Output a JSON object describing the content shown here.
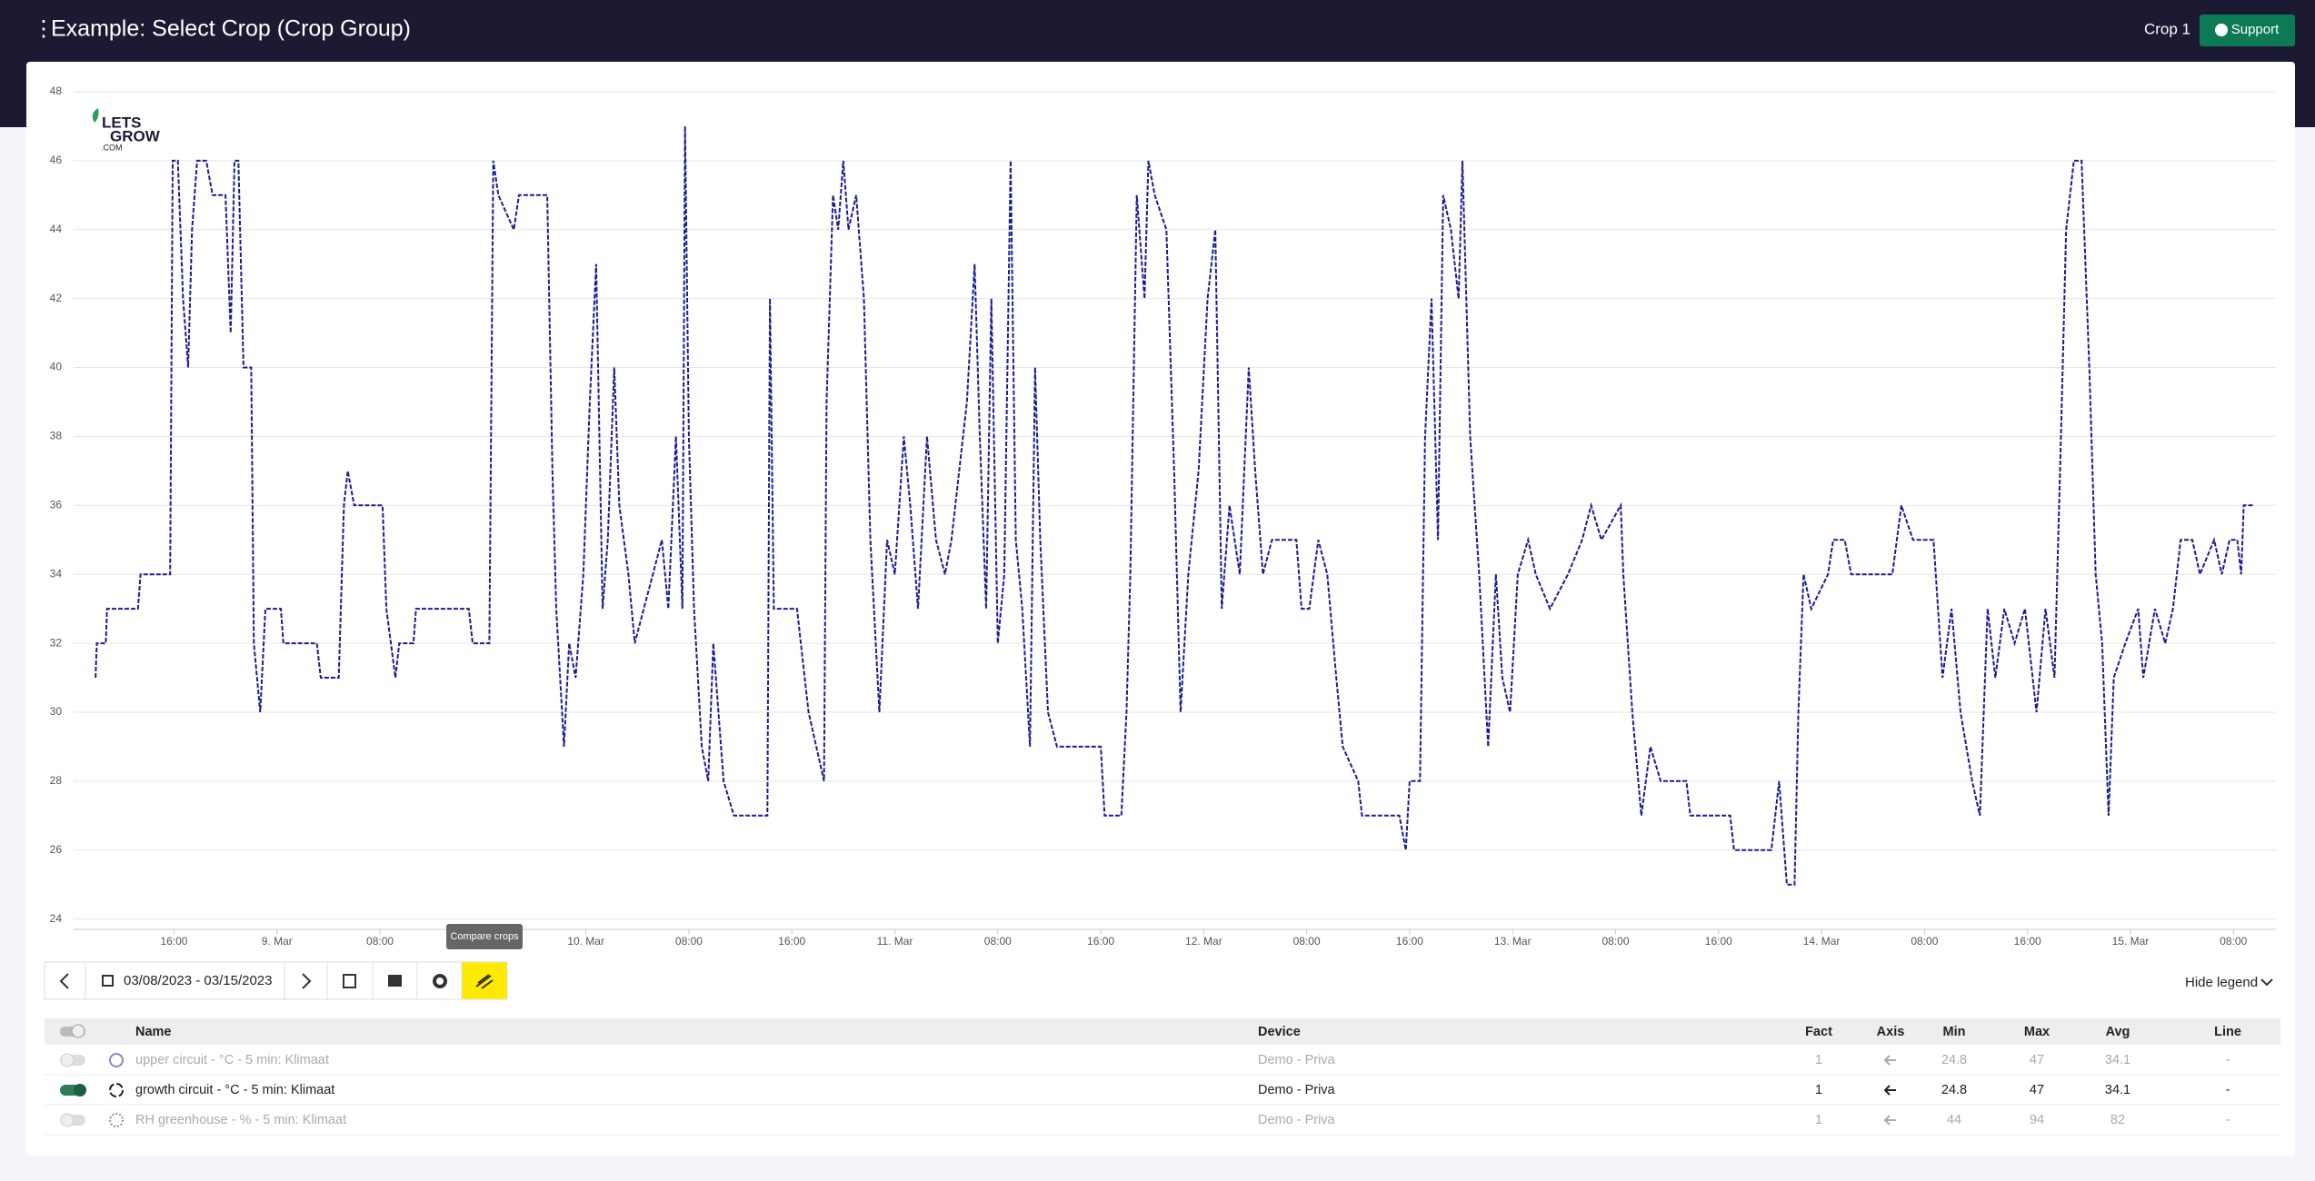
{
  "header": {
    "title": "Example: Select Crop (Crop Group)",
    "crop": "Crop 1",
    "support": "Support"
  },
  "logo": [
    "LETS",
    "GROW",
    ".COM"
  ],
  "chart_data": {
    "type": "line",
    "x": [
      9.9,
      10.0,
      10.7,
      10.8,
      13.2,
      13.4,
      15.7,
      15.9,
      16.3,
      16.7,
      17.1,
      17.4,
      17.8,
      18.5,
      19.0,
      20.0,
      20.4,
      20.7,
      21.0,
      21.4,
      22.0,
      22.2,
      22.7,
      23.1,
      24.3,
      24.5,
      27.1,
      27.4,
      28.8,
      29.2,
      29.5,
      30.0,
      32.2,
      32.5,
      33.2,
      33.5,
      34.6,
      34.8,
      38.9,
      39.2,
      40.5,
      40.8,
      41.2,
      42.4,
      42.8,
      45.0,
      45.4,
      45.7,
      46.3,
      46.7,
      47.2,
      47.8,
      48.3,
      48.8,
      49.3,
      49.7,
      50.2,
      50.6,
      51.3,
      51.8,
      52.5,
      53.2,
      53.9,
      54.4,
      55.0,
      55.5,
      55.7,
      56.0,
      56.4,
      57.0,
      57.5,
      57.9,
      58.7,
      59.5,
      62.1,
      62.3,
      62.6,
      64.4,
      64.7,
      65.3,
      65.9,
      66.5,
      66.7,
      67.2,
      67.6,
      68.0,
      68.4,
      69.0,
      69.6,
      70.1,
      70.8,
      71.4,
      72.0,
      72.7,
      73.2,
      73.8,
      74.5,
      75.2,
      75.9,
      76.4,
      77.0,
      77.6,
      78.2,
      78.6,
      79.1,
      79.5,
      80.0,
      80.5,
      81.0,
      81.4,
      81.9,
      82.5,
      82.9,
      83.3,
      83.9,
      84.6,
      88.0,
      88.3,
      89.6,
      90.0,
      90.3,
      90.8,
      91.4,
      91.7,
      92.2,
      93.1,
      93.7,
      94.2,
      94.8,
      95.6,
      96.3,
      96.9,
      97.4,
      98.0,
      98.8,
      99.5,
      100.0,
      100.6,
      101.3,
      103.2,
      103.6,
      104.2,
      104.9,
      105.6,
      106.3,
      106.8,
      108.0,
      108.3,
      111.2,
      111.7,
      112.0,
      112.8,
      113.2,
      113.7,
      114.2,
      114.6,
      115.2,
      115.8,
      116.1,
      116.7,
      117.4,
      118.1,
      118.7,
      119.2,
      119.8,
      120.4,
      121.2,
      121.8,
      122.9,
      124.3,
      125.4,
      126.1,
      126.9,
      128.4,
      128.6,
      129.3,
      130.0,
      130.7,
      131.5,
      133.5,
      133.8,
      136.9,
      137.2,
      140.1,
      140.7,
      141.3,
      141.9,
      142.2,
      142.6,
      143.2,
      144.5,
      144.9,
      145.8,
      146.3,
      149.5,
      150.2,
      151.1,
      152.7,
      153.4,
      154.1,
      154.8,
      155.7,
      156.3,
      156.9,
      157.5,
      158.2,
      159.0,
      159.8,
      160.7,
      161.4,
      162.1,
      162.6,
      163.0,
      163.6,
      164.2,
      164.8,
      165.3,
      165.8,
      166.3,
      166.7,
      167.6,
      168.6,
      169.0,
      169.9,
      170.7,
      171.3,
      171.9,
      172.8,
      173.4,
      174.5,
      175.1,
      175.7,
      176.3,
      176.6,
      176.8,
      177.6
    ],
    "series": [
      {
        "color": "#1c1c8f",
        "values": [
          31,
          32,
          32,
          33,
          33,
          34,
          34,
          46,
          46,
          42,
          40,
          44,
          46,
          46,
          45,
          45,
          41,
          46,
          46,
          40,
          40,
          32,
          30,
          33,
          33,
          32,
          32,
          31,
          31,
          36,
          37,
          36,
          36,
          33,
          31,
          32,
          32,
          33,
          33,
          32,
          32,
          46,
          45,
          44,
          45,
          45,
          37,
          33,
          29,
          32,
          31,
          34,
          39,
          43,
          33,
          35,
          40,
          36,
          34,
          32,
          33,
          34,
          35,
          33,
          38,
          33,
          47,
          38,
          33,
          29,
          28,
          32,
          28,
          27,
          27,
          42,
          33,
          33,
          32,
          30,
          29,
          28,
          39,
          45,
          44,
          46,
          44,
          45,
          42,
          35,
          30,
          35,
          34,
          38,
          36,
          33,
          38,
          35,
          34,
          35,
          37,
          39,
          43,
          38,
          33,
          42,
          32,
          34,
          46,
          35,
          33,
          29,
          40,
          35,
          30,
          29,
          29,
          27,
          27,
          30,
          34,
          45,
          42,
          46,
          45,
          44,
          37,
          30,
          34,
          37,
          42,
          44,
          33,
          36,
          34,
          40,
          37,
          34,
          35,
          35,
          33,
          33,
          35,
          34,
          31,
          29,
          28,
          27,
          27,
          26,
          28,
          28,
          38,
          42,
          35,
          45,
          44,
          42,
          46,
          38,
          34,
          29,
          34,
          31,
          30,
          34,
          35,
          34,
          33,
          34,
          35,
          36,
          35,
          36,
          34,
          30,
          27,
          29,
          28,
          28,
          27,
          27,
          26,
          26,
          28,
          25,
          25,
          30,
          34,
          33,
          34,
          35,
          35,
          34,
          34,
          36,
          35,
          35,
          31,
          33,
          30,
          28,
          27,
          33,
          31,
          33,
          32,
          33,
          30,
          33,
          31,
          38,
          44,
          46,
          46,
          40,
          34,
          32,
          27,
          31,
          32,
          33,
          31,
          33,
          32,
          33,
          35,
          35,
          34,
          35,
          34,
          35,
          35,
          34,
          36,
          36
        ]
      }
    ],
    "xlim": [
      8.2,
      179.3
    ],
    "xticks": [
      {
        "value": 16,
        "label": "16:00"
      },
      {
        "value": 24,
        "label": "9. Mar"
      },
      {
        "value": 32,
        "label": "08:00"
      },
      {
        "value": 40,
        "label": "16:00"
      },
      {
        "value": 48,
        "label": "10. Mar"
      },
      {
        "value": 56,
        "label": "08:00"
      },
      {
        "value": 64,
        "label": "16:00"
      },
      {
        "value": 72,
        "label": "11. Mar"
      },
      {
        "value": 80,
        "label": "08:00"
      },
      {
        "value": 88,
        "label": "16:00"
      },
      {
        "value": 96,
        "label": "12. Mar"
      },
      {
        "value": 104,
        "label": "08:00"
      },
      {
        "value": 112,
        "label": "16:00"
      },
      {
        "value": 120,
        "label": "13. Mar"
      },
      {
        "value": 128,
        "label": "08:00"
      },
      {
        "value": 136,
        "label": "16:00"
      },
      {
        "value": 144,
        "label": "14. Mar"
      },
      {
        "value": 152,
        "label": "08:00"
      },
      {
        "value": 160,
        "label": "16:00"
      },
      {
        "value": 168,
        "label": "15. Mar"
      },
      {
        "value": 176,
        "label": "08:00"
      }
    ],
    "ylim": [
      23.7,
      48
    ],
    "yticks": [
      24,
      26,
      28,
      30,
      32,
      34,
      36,
      38,
      40,
      42,
      44,
      46,
      48
    ],
    "grid": true
  },
  "toolbar": {
    "date_range": "03/08/2023 - 03/15/2023",
    "tooltip": "Compare crops",
    "hide_legend": "Hide legend"
  },
  "legend_table": {
    "columns": [
      "Name",
      "Device",
      "Fact",
      "Axis",
      "Min",
      "Max",
      "Avg",
      "Line"
    ],
    "rows": [
      {
        "enabled": false,
        "name": "upper circuit - °C - 5 min: Klimaat",
        "device": "Demo - Priva",
        "fact": 1,
        "min": 24.8,
        "max": 47,
        "avg": 34.1,
        "line": "-"
      },
      {
        "enabled": true,
        "name": "growth circuit - °C - 5 min: Klimaat",
        "device": "Demo - Priva",
        "fact": 1,
        "min": 24.8,
        "max": 47,
        "avg": 34.1,
        "line": "-"
      },
      {
        "enabled": false,
        "name": "RH greenhouse - % - 5 min: Klimaat",
        "device": "Demo - Priva",
        "fact": 1,
        "min": 44,
        "max": 94,
        "avg": 82,
        "line": "-"
      }
    ]
  }
}
